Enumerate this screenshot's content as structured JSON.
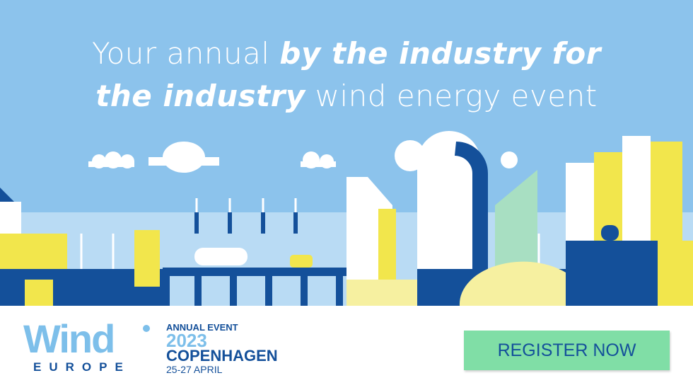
{
  "headline": {
    "line1_plain": "Your annual ",
    "line1_bold": "by the industry for",
    "line2_bold": "the industry",
    "line2_plain": " wind energy event"
  },
  "logo": {
    "word1": "Wind",
    "word2": "EUROPE"
  },
  "event": {
    "label": "ANNUAL EVENT",
    "year": "2023",
    "city": "COPENHAGEN",
    "dates": "25-27 APRIL"
  },
  "cta": {
    "label": "REGISTER NOW"
  },
  "colors": {
    "sky": "#8cc3ec",
    "dark_blue": "#14509a",
    "yellow": "#f2e64c",
    "mint": "#80dea6",
    "light_blue": "#7dbfea"
  }
}
